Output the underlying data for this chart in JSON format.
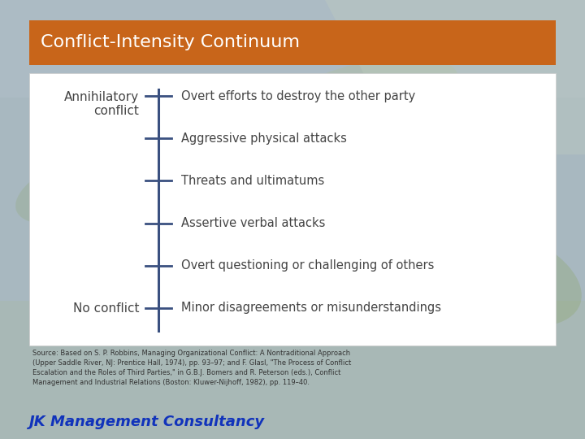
{
  "title": "Conflict-Intensity Continuum",
  "title_bg_color": "#C8651A",
  "title_text_color": "#FFFFFF",
  "title_fontsize": 16,
  "bg_color_top": "#A8B8C8",
  "bg_color": "#A8B8C0",
  "box_color": "#FFFFFF",
  "items": [
    "Overt efforts to destroy the other party",
    "Aggressive physical attacks",
    "Threats and ultimatums",
    "Assertive verbal attacks",
    "Overt questioning or challenging of others",
    "Minor disagreements or misunderstandings"
  ],
  "top_label": "Annihilatory\nconflict",
  "bottom_label": "No conflict",
  "label_color": "#444444",
  "item_color": "#444444",
  "line_color": "#3A5080",
  "tick_color": "#3A5080",
  "source_text": "Source: Based on S. P. Robbins, Managing Organizational Conflict: A Nontraditional Approach\n(Upper Saddle River, NJ: Prentice Hall, 1974), pp. 93–97; and F. Glasl, \"The Process of Conflict\nEscalation and the Roles of Third Parties,\" in G.B.J. Bomers and R. Peterson (eds.), Conflict\nManagement and Industrial Relations (Boston: Kluwer-Nijhoff, 1982), pp. 119–40.",
  "source_fontsize": 6.0,
  "source_color": "#333333",
  "brand_text": "JK Management Consultancy",
  "brand_color": "#1133BB",
  "brand_fontsize": 13
}
